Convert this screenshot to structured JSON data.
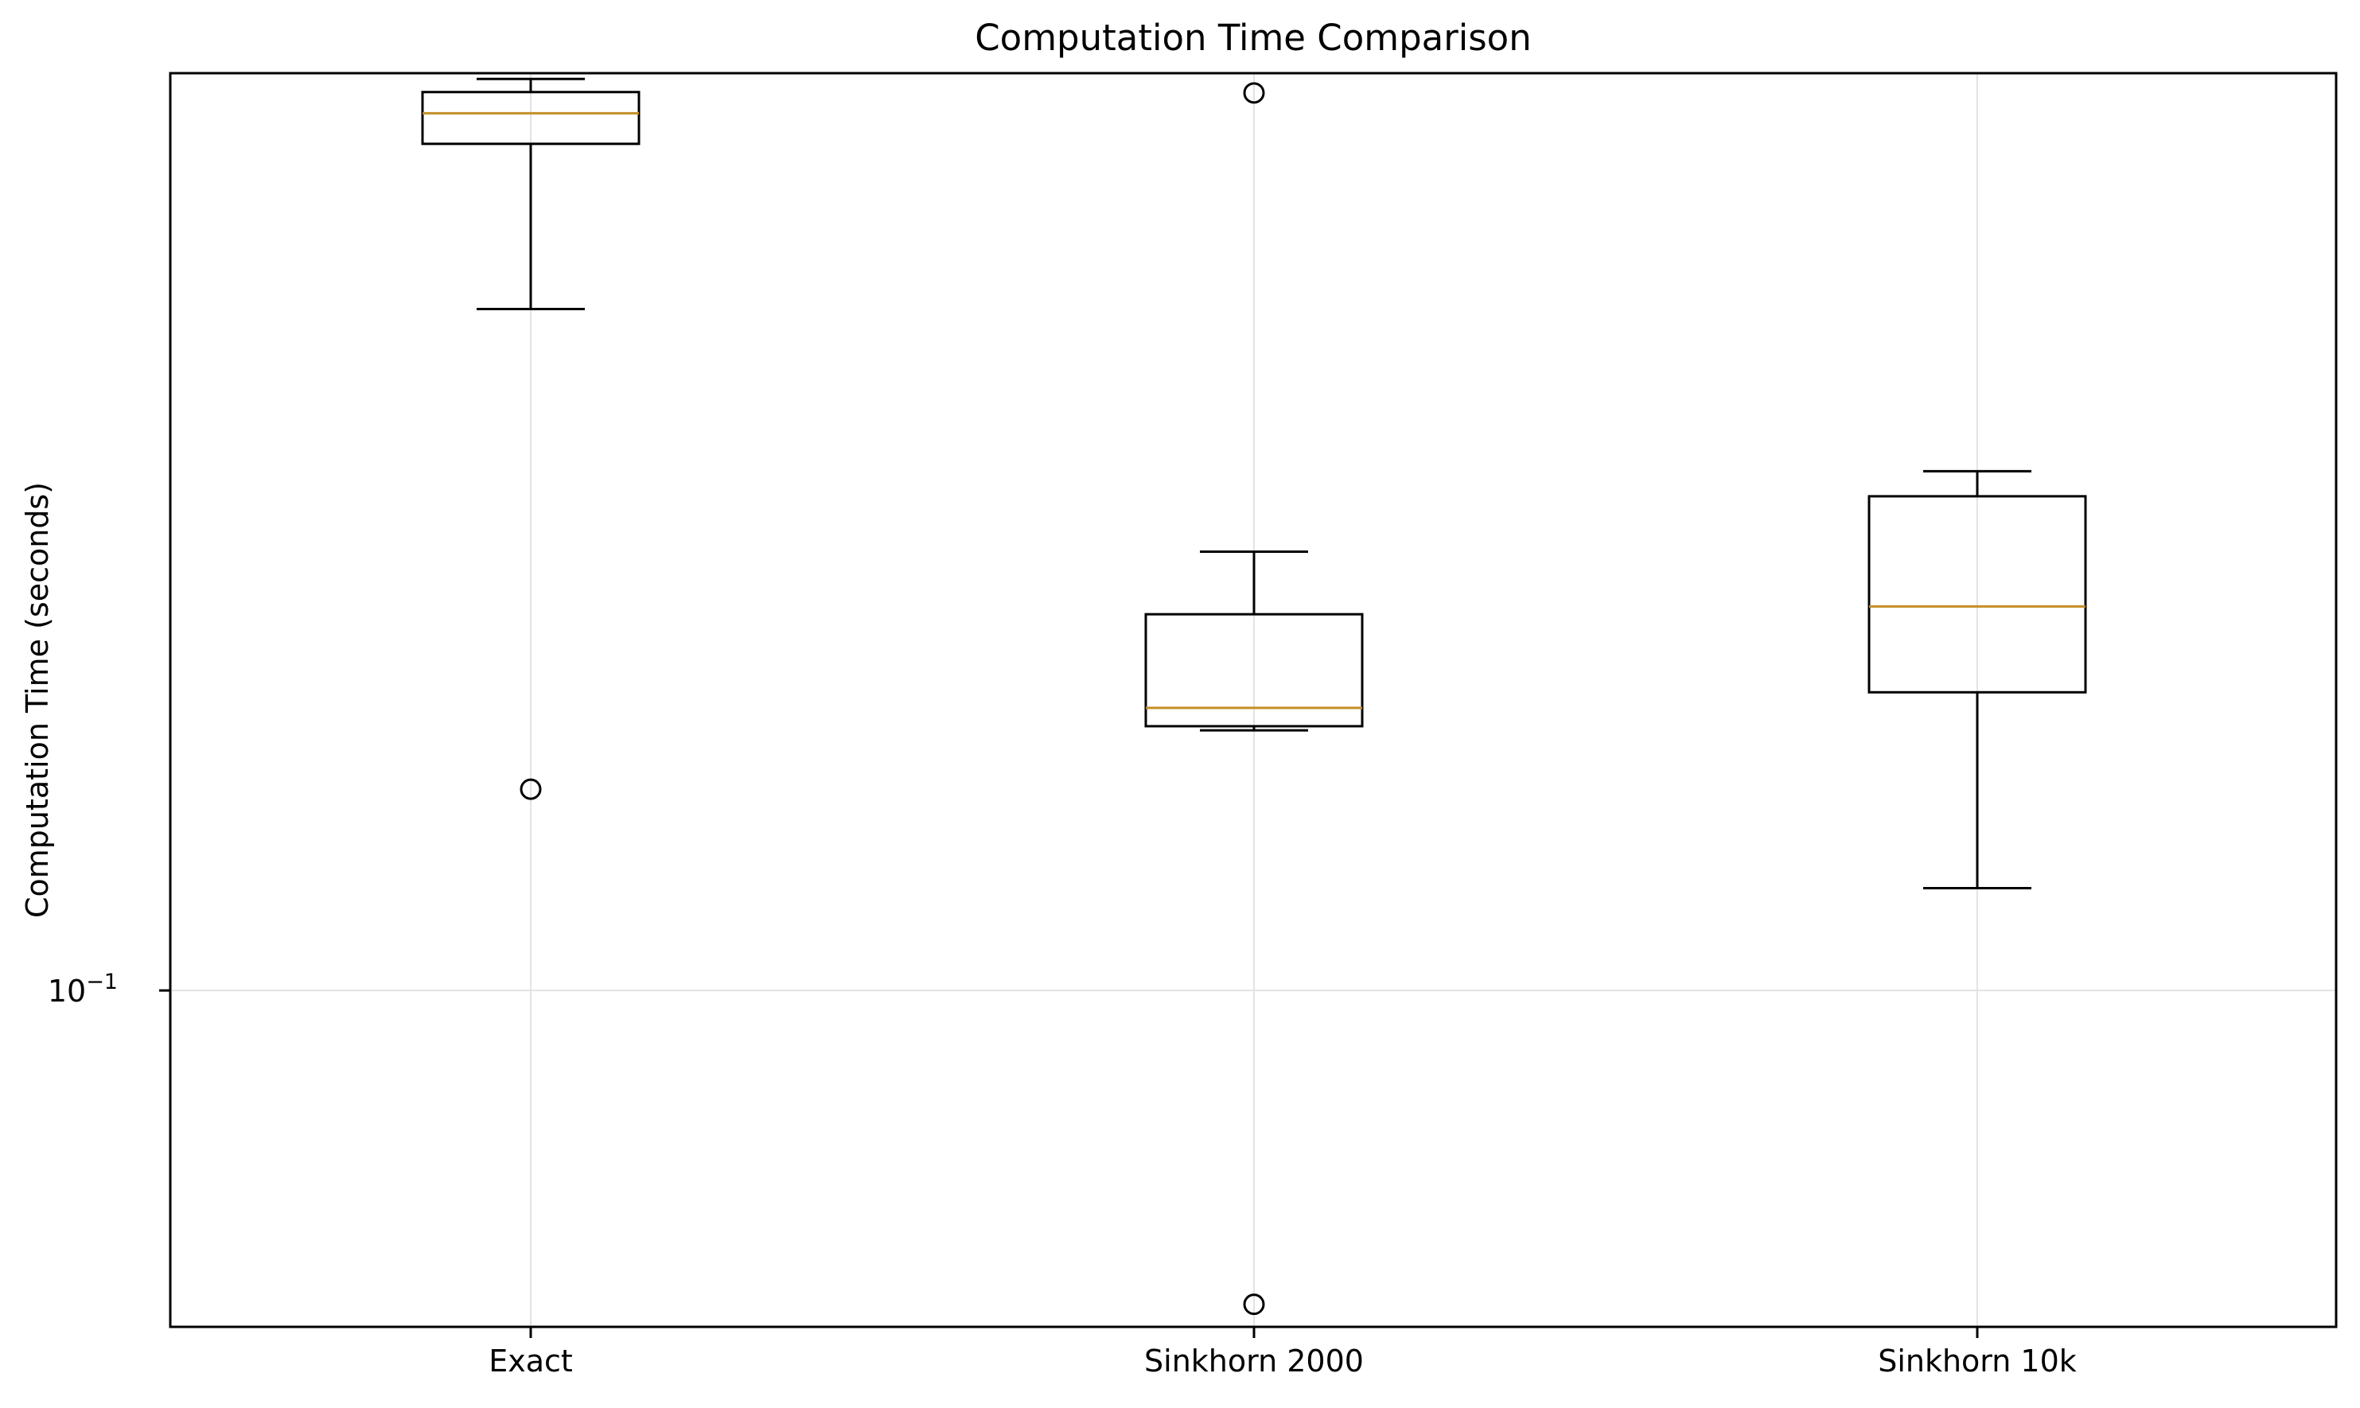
{
  "chart_data": {
    "type": "box",
    "title": "Computation Time Comparison",
    "xlabel": "",
    "ylabel": "Computation Time (seconds)",
    "yscale": "log",
    "ylim": [
      0.0433,
      0.98
    ],
    "grid": true,
    "categories": [
      "Exact",
      "Sinkhorn 2000",
      "Sinkhorn 10k"
    ],
    "y_ticks": [
      {
        "value": 0.1,
        "base": "10",
        "exp": "−1"
      }
    ],
    "boxes": [
      {
        "category": "Exact",
        "whisker_low": 0.545,
        "q1": 0.822,
        "median": 0.887,
        "q3": 0.935,
        "whisker_high": 0.966,
        "outliers": [
          0.165
        ]
      },
      {
        "category": "Sinkhorn 2000",
        "whisker_low": 0.191,
        "q1": 0.193,
        "median": 0.202,
        "q3": 0.255,
        "whisker_high": 0.298,
        "outliers": [
          0.933,
          0.0458
        ]
      },
      {
        "category": "Sinkhorn 10k",
        "whisker_low": 0.129,
        "q1": 0.21,
        "median": 0.26,
        "q3": 0.342,
        "whisker_high": 0.364,
        "outliers": []
      }
    ],
    "colors": {
      "box": "#000000",
      "median": "#c58e26",
      "grid": "#e3e3e3",
      "axis": "#000000"
    }
  }
}
